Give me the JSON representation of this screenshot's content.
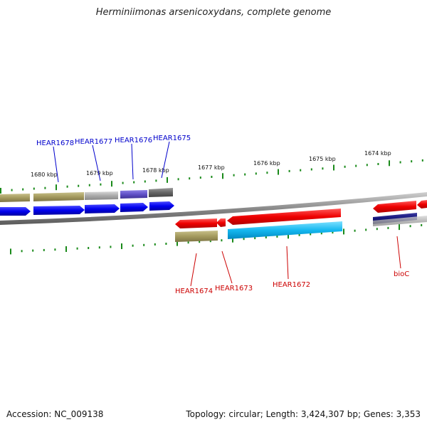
{
  "title": "Herminiimonas arsenicoxydans, complete genome",
  "footer": {
    "accession": "Accession: NC_009138",
    "summary": "Topology: circular; Length: 3,424,307 bp; Genes: 3,353"
  },
  "ruler_labels": [
    "1680 kbp",
    "1679 kbp",
    "1678 kbp",
    "1677 kbp",
    "1676 kbp",
    "1675 kbp",
    "1674 kbp"
  ],
  "genes_top": [
    {
      "name": "HEAR1678",
      "color": "#0000cc"
    },
    {
      "name": "HEAR1677",
      "color": "#0000cc"
    },
    {
      "name": "HEAR1676",
      "color": "#0000cc"
    },
    {
      "name": "HEAR1675",
      "color": "#0000cc"
    }
  ],
  "genes_bottom": [
    {
      "name": "HEAR1674",
      "color": "#cc0000"
    },
    {
      "name": "HEAR1673",
      "color": "#cc0000"
    },
    {
      "name": "HEAR1672",
      "color": "#cc0000"
    },
    {
      "name": "bioC",
      "color": "#cc0000"
    }
  ]
}
